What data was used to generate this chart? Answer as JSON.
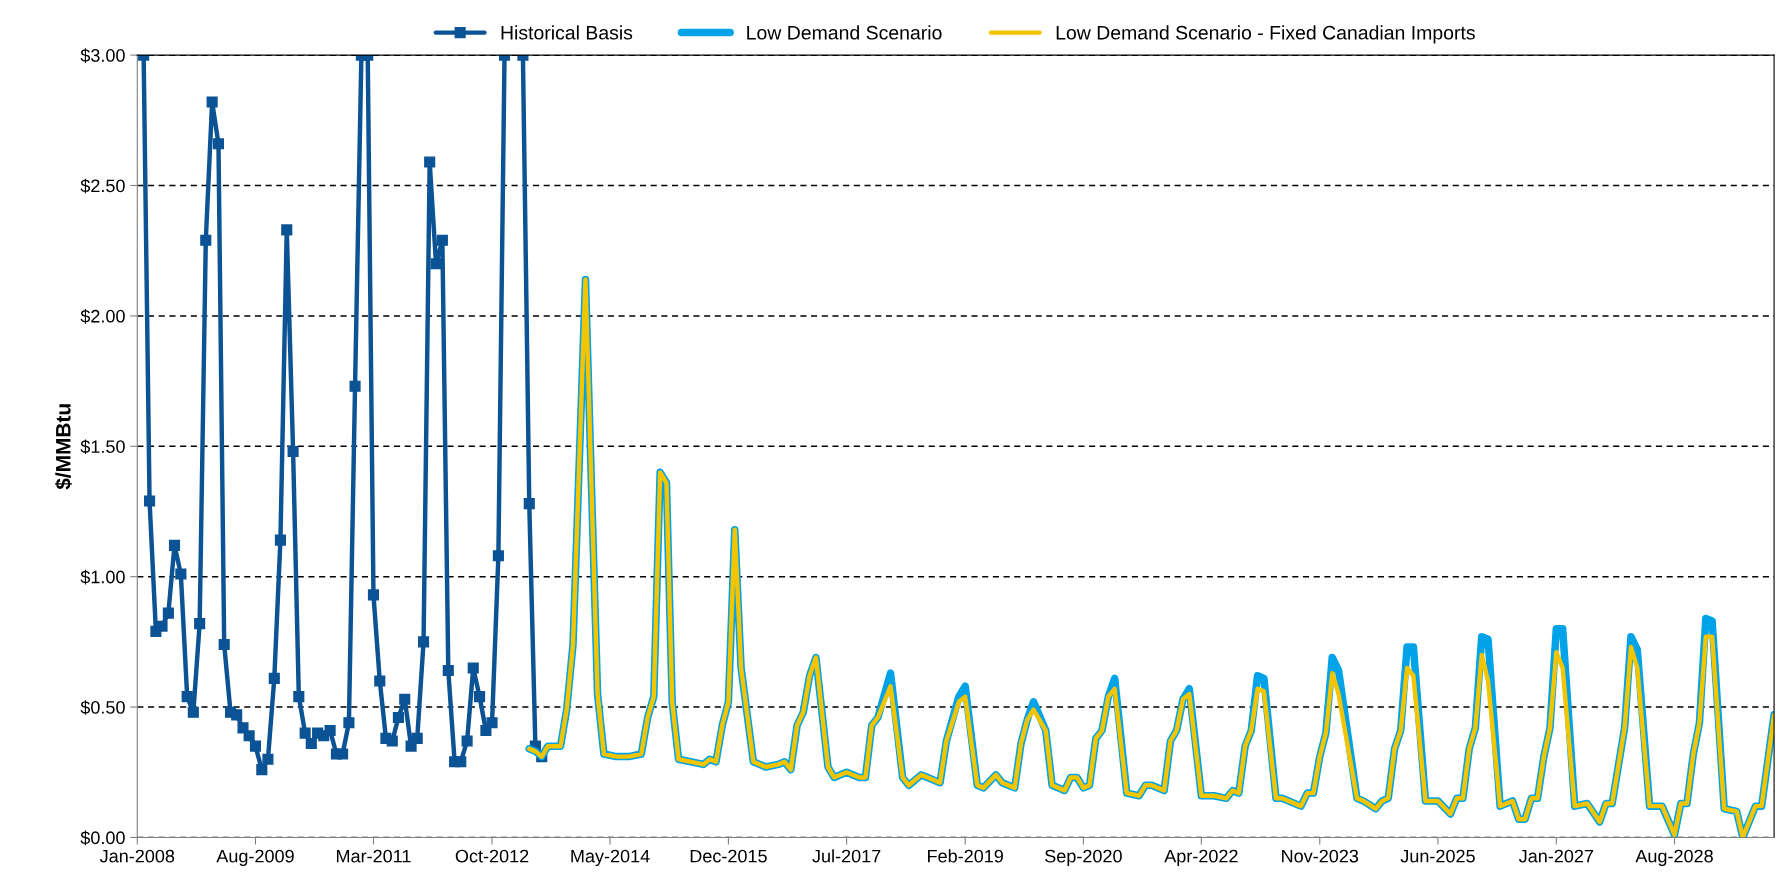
{
  "chart_data": {
    "type": "line",
    "ylabel": "$/MMBtu",
    "xlim": [
      "2008-01",
      "2029-12"
    ],
    "xticks": [
      {
        "value": "2008-01",
        "label": "Jan-2008"
      },
      {
        "value": "2009-08",
        "label": "Aug-2009"
      },
      {
        "value": "2011-03",
        "label": "Mar-2011"
      },
      {
        "value": "2012-10",
        "label": "Oct-2012"
      },
      {
        "value": "2014-05",
        "label": "May-2014"
      },
      {
        "value": "2015-12",
        "label": "Dec-2015"
      },
      {
        "value": "2017-07",
        "label": "Jul-2017"
      },
      {
        "value": "2019-02",
        "label": "Feb-2019"
      },
      {
        "value": "2020-09",
        "label": "Sep-2020"
      },
      {
        "value": "2022-04",
        "label": "Apr-2022"
      },
      {
        "value": "2023-11",
        "label": "Nov-2023"
      },
      {
        "value": "2025-06",
        "label": "Jun-2025"
      },
      {
        "value": "2027-01",
        "label": "Jan-2027"
      },
      {
        "value": "2028-08",
        "label": "Aug-2028"
      }
    ],
    "ylim": [
      0,
      3
    ],
    "yticks": [
      {
        "value": 0,
        "label": "$0.00"
      },
      {
        "value": 0.5,
        "label": "$0.50"
      },
      {
        "value": 1.0,
        "label": "$1.00"
      },
      {
        "value": 1.5,
        "label": "$1.50"
      },
      {
        "value": 2.0,
        "label": "$2.00"
      },
      {
        "value": 2.5,
        "label": "$2.50"
      },
      {
        "value": 3.0,
        "label": "$3.00"
      }
    ],
    "grid": "y",
    "legend": "top",
    "line_style": "solid",
    "series": [
      {
        "name": "Historical Basis",
        "color": "#0b5394",
        "marker": "square",
        "x": [
          "2008-02",
          "2008-03",
          "2008-04",
          "2008-05",
          "2008-06",
          "2008-07",
          "2008-08",
          "2008-09",
          "2008-10",
          "2008-11",
          "2008-12",
          "2009-01",
          "2009-02",
          "2009-03",
          "2009-04",
          "2009-05",
          "2009-06",
          "2009-07",
          "2009-08",
          "2009-09",
          "2009-10",
          "2009-11",
          "2009-12",
          "2010-01",
          "2010-02",
          "2010-03",
          "2010-04",
          "2010-05",
          "2010-06",
          "2010-07",
          "2010-08",
          "2010-09",
          "2010-10",
          "2010-11",
          "2010-12",
          "2011-01",
          "2011-02",
          "2011-03",
          "2011-04",
          "2011-05",
          "2011-06",
          "2011-07",
          "2011-08",
          "2011-09",
          "2011-10",
          "2011-11",
          "2011-12",
          "2012-01",
          "2012-02",
          "2012-03",
          "2012-04",
          "2012-05",
          "2012-06",
          "2012-07",
          "2012-08",
          "2012-09",
          "2012-10",
          "2012-11",
          "2012-12",
          "2013-01",
          "2013-02",
          "2013-03",
          "2013-04",
          "2013-05",
          "2013-06"
        ],
        "values": [
          3.0,
          1.29,
          0.79,
          0.81,
          0.86,
          1.12,
          1.01,
          0.54,
          0.48,
          0.82,
          2.29,
          2.82,
          2.66,
          0.74,
          0.48,
          0.47,
          0.42,
          0.39,
          0.35,
          0.26,
          0.3,
          0.61,
          1.14,
          2.33,
          1.48,
          0.54,
          0.4,
          0.36,
          0.4,
          0.39,
          0.41,
          0.32,
          0.32,
          0.44,
          1.73,
          3.0,
          3.0,
          0.93,
          0.6,
          0.38,
          0.37,
          0.46,
          0.53,
          0.35,
          0.38,
          0.75,
          2.59,
          2.2,
          2.29,
          0.64,
          0.29,
          0.29,
          0.37,
          0.65,
          0.54,
          0.41,
          0.44,
          1.08,
          3.0,
          null,
          null,
          3.0,
          1.28,
          0.35,
          0.31
        ]
      },
      {
        "name": "Low Demand Scenario",
        "color": "#00a2e8",
        "marker": "none",
        "x": [
          "2013-04",
          "2013-05",
          "2013-06",
          "2013-07",
          "2013-09",
          "2013-10",
          "2013-11",
          "2014-01",
          "2014-02",
          "2014-03",
          "2014-04",
          "2014-06",
          "2014-08",
          "2014-10",
          "2014-11",
          "2014-12",
          "2015-01",
          "2015-02",
          "2015-03",
          "2015-04",
          "2015-08",
          "2015-09",
          "2015-10",
          "2015-11",
          "2015-12",
          "2016-01",
          "2016-02",
          "2016-04",
          "2016-06",
          "2016-08",
          "2016-09",
          "2016-10",
          "2016-11",
          "2016-12",
          "2017-01",
          "2017-02",
          "2017-04",
          "2017-05",
          "2017-07",
          "2017-09",
          "2017-10",
          "2017-11",
          "2017-12",
          "2018-02",
          "2018-04",
          "2018-05",
          "2018-07",
          "2018-08",
          "2018-10",
          "2018-11",
          "2019-01",
          "2019-02",
          "2019-04",
          "2019-05",
          "2019-07",
          "2019-08",
          "2019-10",
          "2019-11",
          "2019-12",
          "2020-01",
          "2020-03",
          "2020-04",
          "2020-06",
          "2020-07",
          "2020-08",
          "2020-09",
          "2020-10",
          "2020-11",
          "2020-12",
          "2021-01",
          "2021-02",
          "2021-04",
          "2021-06",
          "2021-07",
          "2021-08",
          "2021-10",
          "2021-11",
          "2021-12",
          "2022-01",
          "2022-02",
          "2022-04",
          "2022-06",
          "2022-08",
          "2022-09",
          "2022-10",
          "2022-11",
          "2022-12",
          "2023-01",
          "2023-02",
          "2023-04",
          "2023-05",
          "2023-08",
          "2023-09",
          "2023-10",
          "2023-11",
          "2023-12",
          "2024-01",
          "2024-02",
          "2024-05",
          "2024-06",
          "2024-08",
          "2024-09",
          "2024-10",
          "2024-11",
          "2024-12",
          "2025-01",
          "2025-02",
          "2025-04",
          "2025-06",
          "2025-08",
          "2025-09",
          "2025-10",
          "2025-11",
          "2025-12",
          "2026-01",
          "2026-02",
          "2026-04",
          "2026-06",
          "2026-07",
          "2026-08",
          "2026-09",
          "2026-10",
          "2026-11",
          "2026-12",
          "2027-01",
          "2027-02",
          "2027-04",
          "2027-06",
          "2027-08",
          "2027-09",
          "2027-10",
          "2027-12",
          "2028-01",
          "2028-02",
          "2028-04",
          "2028-06",
          "2028-08",
          "2028-09",
          "2028-10",
          "2028-11",
          "2028-12",
          "2029-01",
          "2029-02",
          "2029-04",
          "2029-06",
          "2029-07",
          "2029-09",
          "2029-10",
          "2029-12"
        ],
        "values": [
          0.34,
          0.33,
          0.31,
          0.35,
          0.35,
          0.49,
          0.74,
          2.14,
          1.3,
          0.55,
          0.32,
          0.31,
          0.31,
          0.32,
          0.46,
          0.54,
          1.4,
          1.36,
          0.52,
          0.3,
          0.28,
          0.3,
          0.29,
          0.43,
          0.52,
          1.18,
          0.65,
          0.29,
          0.27,
          0.28,
          0.29,
          0.26,
          0.43,
          0.48,
          0.62,
          0.69,
          0.27,
          0.23,
          0.25,
          0.23,
          0.23,
          0.43,
          0.46,
          0.63,
          0.23,
          0.2,
          0.24,
          0.23,
          0.21,
          0.37,
          0.54,
          0.58,
          0.2,
          0.19,
          0.24,
          0.21,
          0.19,
          0.36,
          0.45,
          0.52,
          0.41,
          0.2,
          0.18,
          0.23,
          0.23,
          0.19,
          0.2,
          0.38,
          0.41,
          0.54,
          0.61,
          0.17,
          0.16,
          0.2,
          0.2,
          0.18,
          0.37,
          0.41,
          0.53,
          0.57,
          0.16,
          0.16,
          0.15,
          0.18,
          0.17,
          0.35,
          0.41,
          0.62,
          0.61,
          0.15,
          0.15,
          0.12,
          0.17,
          0.17,
          0.31,
          0.4,
          0.69,
          0.64,
          0.15,
          0.14,
          0.11,
          0.14,
          0.15,
          0.34,
          0.41,
          0.73,
          0.73,
          0.14,
          0.14,
          0.09,
          0.15,
          0.15,
          0.34,
          0.42,
          0.77,
          0.76,
          0.12,
          0.14,
          0.07,
          0.07,
          0.15,
          0.15,
          0.31,
          0.42,
          0.8,
          0.8,
          0.12,
          0.13,
          0.06,
          0.13,
          0.13,
          0.42,
          0.77,
          0.72,
          0.12,
          0.12,
          0.01,
          0.13,
          0.13,
          0.32,
          0.44,
          0.84,
          0.83,
          0.11,
          0.1,
          0.0,
          0.12,
          0.12,
          0.47
        ]
      },
      {
        "name": "Low Demand Scenario - Fixed Canadian Imports",
        "color": "#f2c500",
        "marker": "none",
        "x": [
          "2013-04",
          "2013-05",
          "2013-06",
          "2013-07",
          "2013-09",
          "2013-10",
          "2013-11",
          "2014-01",
          "2014-02",
          "2014-03",
          "2014-04",
          "2014-06",
          "2014-08",
          "2014-10",
          "2014-11",
          "2014-12",
          "2015-01",
          "2015-02",
          "2015-03",
          "2015-04",
          "2015-08",
          "2015-09",
          "2015-10",
          "2015-11",
          "2015-12",
          "2016-01",
          "2016-02",
          "2016-04",
          "2016-06",
          "2016-08",
          "2016-09",
          "2016-10",
          "2016-11",
          "2016-12",
          "2017-01",
          "2017-02",
          "2017-04",
          "2017-05",
          "2017-07",
          "2017-09",
          "2017-10",
          "2017-11",
          "2017-12",
          "2018-02",
          "2018-04",
          "2018-05",
          "2018-07",
          "2018-08",
          "2018-10",
          "2018-11",
          "2019-01",
          "2019-02",
          "2019-04",
          "2019-05",
          "2019-07",
          "2019-08",
          "2019-10",
          "2019-11",
          "2019-12",
          "2020-01",
          "2020-03",
          "2020-04",
          "2020-06",
          "2020-07",
          "2020-08",
          "2020-09",
          "2020-10",
          "2020-11",
          "2020-12",
          "2021-01",
          "2021-02",
          "2021-04",
          "2021-06",
          "2021-07",
          "2021-08",
          "2021-10",
          "2021-11",
          "2021-12",
          "2022-01",
          "2022-02",
          "2022-04",
          "2022-06",
          "2022-08",
          "2022-09",
          "2022-10",
          "2022-11",
          "2022-12",
          "2023-01",
          "2023-02",
          "2023-04",
          "2023-05",
          "2023-08",
          "2023-09",
          "2023-10",
          "2023-11",
          "2023-12",
          "2024-01",
          "2024-02",
          "2024-05",
          "2024-06",
          "2024-08",
          "2024-09",
          "2024-10",
          "2024-11",
          "2024-12",
          "2025-01",
          "2025-02",
          "2025-04",
          "2025-06",
          "2025-08",
          "2025-09",
          "2025-10",
          "2025-11",
          "2025-12",
          "2026-01",
          "2026-02",
          "2026-04",
          "2026-06",
          "2026-07",
          "2026-08",
          "2026-09",
          "2026-10",
          "2026-11",
          "2026-12",
          "2027-01",
          "2027-02",
          "2027-04",
          "2027-06",
          "2027-08",
          "2027-09",
          "2027-10",
          "2027-12",
          "2028-01",
          "2028-02",
          "2028-04",
          "2028-06",
          "2028-08",
          "2028-09",
          "2028-10",
          "2028-11",
          "2028-12",
          "2029-01",
          "2029-02",
          "2029-04",
          "2029-06",
          "2029-07",
          "2029-09",
          "2029-10",
          "2029-12"
        ],
        "values": [
          0.34,
          0.33,
          0.31,
          0.35,
          0.35,
          0.49,
          0.74,
          2.14,
          1.3,
          0.55,
          0.32,
          0.31,
          0.31,
          0.32,
          0.46,
          0.54,
          1.4,
          1.36,
          0.52,
          0.3,
          0.28,
          0.3,
          0.29,
          0.43,
          0.52,
          1.18,
          0.65,
          0.29,
          0.27,
          0.28,
          0.29,
          0.26,
          0.43,
          0.48,
          0.62,
          0.69,
          0.27,
          0.23,
          0.25,
          0.23,
          0.23,
          0.43,
          0.46,
          0.58,
          0.23,
          0.2,
          0.24,
          0.23,
          0.21,
          0.37,
          0.52,
          0.54,
          0.2,
          0.19,
          0.24,
          0.21,
          0.19,
          0.36,
          0.45,
          0.49,
          0.41,
          0.2,
          0.18,
          0.23,
          0.23,
          0.19,
          0.2,
          0.38,
          0.41,
          0.54,
          0.57,
          0.17,
          0.16,
          0.2,
          0.2,
          0.18,
          0.37,
          0.41,
          0.53,
          0.55,
          0.16,
          0.16,
          0.15,
          0.18,
          0.17,
          0.35,
          0.41,
          0.57,
          0.56,
          0.15,
          0.15,
          0.12,
          0.17,
          0.17,
          0.31,
          0.4,
          0.63,
          0.55,
          0.15,
          0.14,
          0.11,
          0.14,
          0.15,
          0.34,
          0.41,
          0.65,
          0.62,
          0.14,
          0.14,
          0.09,
          0.15,
          0.15,
          0.34,
          0.42,
          0.7,
          0.6,
          0.12,
          0.14,
          0.07,
          0.07,
          0.15,
          0.15,
          0.31,
          0.42,
          0.71,
          0.65,
          0.12,
          0.13,
          0.06,
          0.13,
          0.13,
          0.42,
          0.73,
          0.65,
          0.12,
          0.12,
          0.01,
          0.13,
          0.13,
          0.32,
          0.44,
          0.77,
          0.77,
          0.11,
          0.1,
          0.0,
          0.12,
          0.12,
          0.47
        ]
      }
    ]
  }
}
